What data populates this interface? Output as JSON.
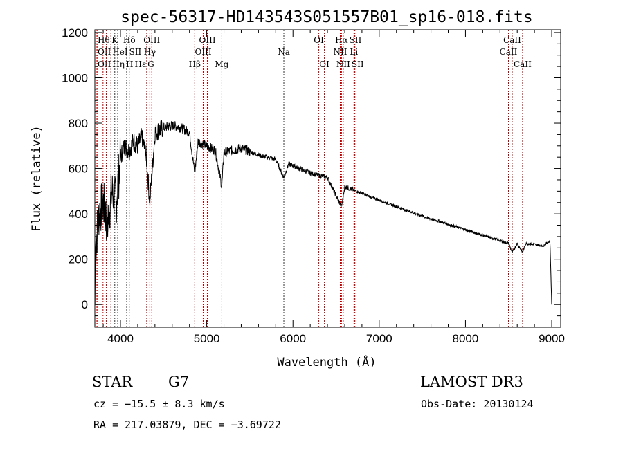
{
  "chart_data": {
    "type": "line",
    "title": "spec-56317-HD143543S051557B01_sp16-018.fits",
    "xlabel": "Wavelength (Å)",
    "ylabel": "Flux (relative)",
    "xlim": [
      3703,
      9104
    ],
    "ylim": [
      -100,
      1212
    ],
    "xticks": [
      4000,
      5000,
      6000,
      7000,
      8000,
      9000
    ],
    "yticks": [
      0,
      200,
      400,
      600,
      800,
      1000,
      1200
    ],
    "series": [
      {
        "name": "spectrum",
        "x": [
          3705,
          3710,
          3750,
          3800,
          3850,
          3900,
          3950,
          4000,
          4050,
          4100,
          4150,
          4200,
          4250,
          4300,
          4340,
          4400,
          4500,
          4600,
          4700,
          4800,
          4861,
          4900,
          5000,
          5100,
          5175,
          5200,
          5400,
          5600,
          5800,
          5894,
          5950,
          6200,
          6400,
          6563,
          6600,
          6800,
          7000,
          7500,
          8000,
          8500,
          8542,
          8600,
          8662,
          8700,
          8900,
          8980,
          9000
        ],
        "y": [
          0,
          250,
          400,
          450,
          350,
          500,
          450,
          650,
          700,
          680,
          720,
          700,
          740,
          650,
          450,
          760,
          780,
          790,
          780,
          760,
          580,
          720,
          700,
          680,
          520,
          670,
          690,
          660,
          640,
          560,
          620,
          580,
          560,
          430,
          520,
          490,
          460,
          390,
          330,
          270,
          230,
          270,
          230,
          270,
          260,
          280,
          0
        ]
      }
    ],
    "lines": [
      {
        "label": "Hθ",
        "wl": 3798,
        "row": 0,
        "c": "red"
      },
      {
        "label": "K",
        "wl": 3934,
        "row": 0,
        "c": "black"
      },
      {
        "label": "Hδ",
        "wl": 4102,
        "row": 0,
        "c": "black"
      },
      {
        "label": "OIII",
        "wl": 4363,
        "row": 0,
        "c": "red"
      },
      {
        "label": "OIII",
        "wl": 5007,
        "row": 0,
        "c": "red"
      },
      {
        "label": "OI",
        "wl": 6300,
        "row": 0,
        "c": "red"
      },
      {
        "label": "Hα",
        "wl": 6563,
        "row": 0,
        "c": "red"
      },
      {
        "label": "SII",
        "wl": 6717,
        "row": 0,
        "c": "red"
      },
      {
        "label": "CaII",
        "wl": 8542,
        "row": 0,
        "c": "red"
      },
      {
        "label": "OII",
        "wl": 3727,
        "row": 1,
        "c": "red"
      },
      {
        "label": "HeI",
        "wl": 3889,
        "row": 1,
        "c": "red"
      },
      {
        "label": "SII",
        "wl": 4072,
        "row": 1,
        "c": "black"
      },
      {
        "label": "Hγ",
        "wl": 4340,
        "row": 1,
        "c": "red"
      },
      {
        "label": "OIII",
        "wl": 4959,
        "row": 1,
        "c": "red"
      },
      {
        "label": "Na",
        "wl": 5894,
        "row": 1,
        "c": "black"
      },
      {
        "label": "NII",
        "wl": 6548,
        "row": 1,
        "c": "red"
      },
      {
        "label": "Li",
        "wl": 6707,
        "row": 1,
        "c": "red"
      },
      {
        "label": "CaII",
        "wl": 8498,
        "row": 1,
        "c": "red"
      },
      {
        "label": "OII",
        "wl": 3729,
        "row": 2,
        "c": "red"
      },
      {
        "label": "Hε",
        "wl": 3970,
        "row": 2,
        "c": "red"
      },
      {
        "label": "Hη",
        "wl": 3835,
        "row": 2,
        "c": "red"
      },
      {
        "label": "H",
        "wl": 3968,
        "row": 2,
        "c": "black"
      },
      {
        "label": "G",
        "wl": 4304,
        "row": 2,
        "c": "red"
      },
      {
        "label": "Hβ",
        "wl": 4861,
        "row": 2,
        "c": "red"
      },
      {
        "label": "Mg",
        "wl": 5175,
        "row": 2,
        "c": "black"
      },
      {
        "label": "OI",
        "wl": 6364,
        "row": 2,
        "c": "red"
      },
      {
        "label": "NII",
        "wl": 6583,
        "row": 2,
        "c": "red"
      },
      {
        "label": "SII",
        "wl": 6731,
        "row": 2,
        "c": "red"
      },
      {
        "label": "CaII",
        "wl": 8662,
        "row": 2,
        "c": "red"
      }
    ]
  },
  "info": {
    "class": "STAR",
    "subclass": "G7",
    "survey": "LAMOST DR3",
    "cz": "cz = −15.5 ± 8.3 km/s",
    "obsdate": "Obs-Date: 20130124",
    "radec": "RA = 217.03879, DEC =  −3.69722"
  }
}
